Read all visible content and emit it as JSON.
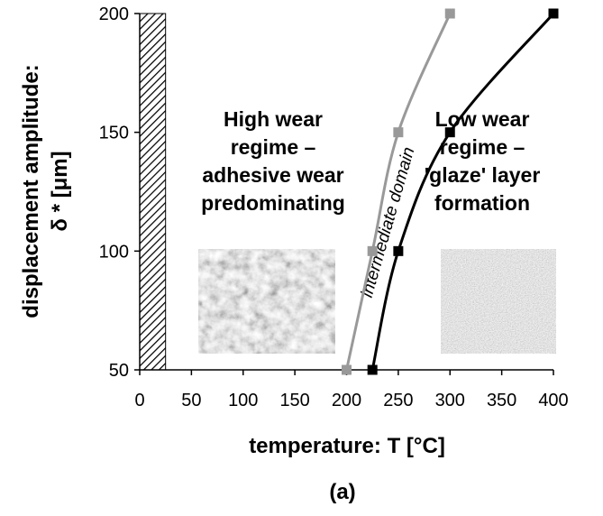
{
  "chart_data": {
    "type": "line",
    "x_label": "temperature: T [°C]",
    "y_label": [
      "displacement amplitude:",
      "δ * [μm]"
    ],
    "caption": "(a)",
    "xlim": [
      0,
      400
    ],
    "xticks": [
      0,
      50,
      100,
      150,
      200,
      250,
      300,
      350,
      400
    ],
    "ylim": [
      50,
      200
    ],
    "yticks": [
      50,
      100,
      150,
      200
    ],
    "grid": false,
    "hatched_region": [
      0,
      25
    ],
    "series": [
      {
        "color": "#999999",
        "x": [
          200,
          225,
          250,
          300
        ],
        "values": [
          50,
          100,
          150,
          200
        ]
      },
      {
        "color": "#000000",
        "x": [
          225,
          250,
          300,
          400
        ],
        "values": [
          50,
          100,
          150,
          200
        ]
      }
    ],
    "annotations": [
      [
        "High wear",
        "regime –",
        "adhesive wear",
        "predominating"
      ],
      [
        "Low wear",
        "regime –",
        "'glaze' layer",
        "formation"
      ],
      "intermediate domain"
    ]
  }
}
